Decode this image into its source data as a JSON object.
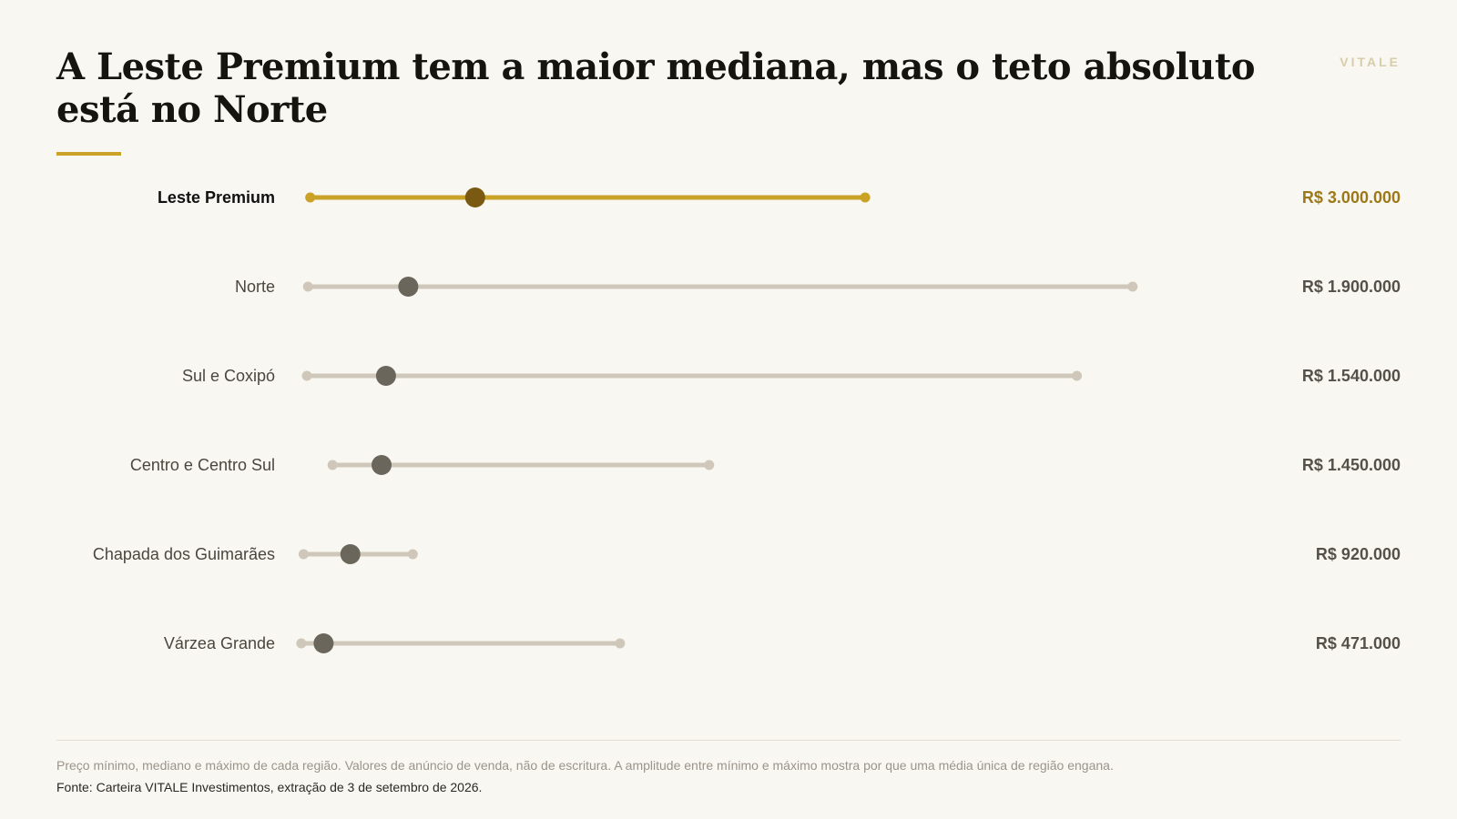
{
  "header": {
    "title": "A Leste Premium tem a maior mediana, mas o teto absoluto está no Norte",
    "brand": "VITALE"
  },
  "footer": {
    "note": "Preço mínimo, mediano e máximo de cada região. Valores de anúncio de venda, não de escritura. A amplitude entre mínimo e máximo mostra por que uma média única de região engana.",
    "source": "Fonte: Carteira VITALE Investimentos, extração de 3 de setembro de 2026."
  },
  "colors": {
    "accent": "#c9a227",
    "accent_dark": "#7a5a12",
    "muted_track": "#cfc8ba",
    "median_dot": "#6b665c",
    "value_text": "#555149",
    "highlight_value": "#9c7818"
  },
  "chart_data": {
    "type": "range-dot",
    "title": "A Leste Premium tem a maior mediana, mas o teto absoluto está no Norte",
    "highlight": "Leste Premium",
    "rows": [
      {
        "label": "Leste Premium",
        "min": 60000,
        "median": 800000,
        "max": 2550000,
        "value_label": "R$ 3.000.000"
      },
      {
        "label": "Norte",
        "min": 50000,
        "median": 500000,
        "max": 3750000,
        "value_label": "R$ 1.900.000"
      },
      {
        "label": "Sul e Coxipó",
        "min": 45000,
        "median": 400000,
        "max": 3500000,
        "value_label": "R$ 1.540.000"
      },
      {
        "label": "Centro e Centro Sul",
        "min": 160000,
        "median": 380000,
        "max": 1850000,
        "value_label": "R$ 1.450.000"
      },
      {
        "label": "Chapada dos Guimarães",
        "min": 30000,
        "median": 240000,
        "max": 520000,
        "value_label": "R$ 920.000"
      },
      {
        "label": "Várzea Grande",
        "min": 20000,
        "median": 120000,
        "max": 1450000,
        "value_label": "R$ 471.000"
      }
    ]
  }
}
